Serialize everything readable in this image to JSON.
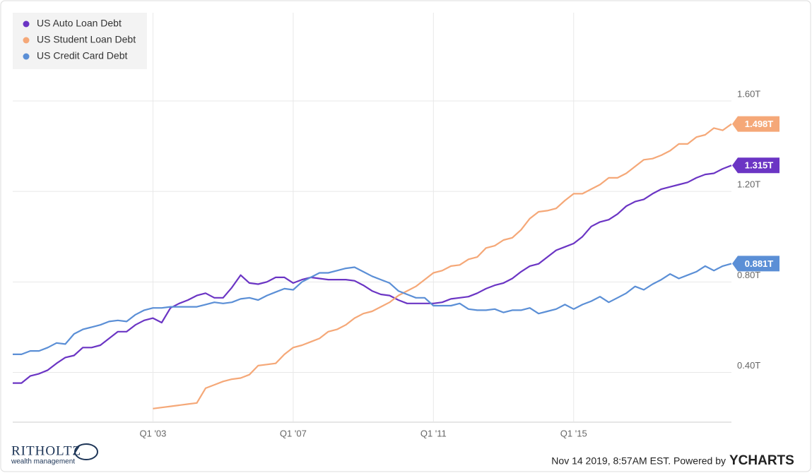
{
  "chart_data": {
    "type": "line",
    "x": [
      1999,
      1999.25,
      1999.5,
      1999.75,
      2000,
      2000.25,
      2000.5,
      2000.75,
      2001,
      2001.25,
      2001.5,
      2001.75,
      2002,
      2002.25,
      2002.5,
      2002.75,
      2003,
      2003.25,
      2003.5,
      2003.75,
      2004,
      2004.25,
      2004.5,
      2004.75,
      2005,
      2005.25,
      2005.5,
      2005.75,
      2006,
      2006.25,
      2006.5,
      2006.75,
      2007,
      2007.25,
      2007.5,
      2007.75,
      2008,
      2008.25,
      2008.5,
      2008.75,
      2009,
      2009.25,
      2009.5,
      2009.75,
      2010,
      2010.25,
      2010.5,
      2010.75,
      2011,
      2011.25,
      2011.5,
      2011.75,
      2012,
      2012.25,
      2012.5,
      2012.75,
      2013,
      2013.25,
      2013.5,
      2013.75,
      2014,
      2014.25,
      2014.5,
      2014.75,
      2015,
      2015.25,
      2015.5,
      2015.75,
      2016,
      2016.25,
      2016.5,
      2016.75,
      2017,
      2017.25,
      2017.5,
      2017.75,
      2018,
      2018.25,
      2018.5,
      2018.75,
      2019,
      2019.25,
      2019.5
    ],
    "series": [
      {
        "name": "US Auto Loan Debt",
        "color": "#6b35c4",
        "end_label": "1.315T",
        "values": [
          0.353,
          0.353,
          0.384,
          0.394,
          0.41,
          0.44,
          0.466,
          0.475,
          0.51,
          0.51,
          0.52,
          0.55,
          0.58,
          0.58,
          0.61,
          0.63,
          0.64,
          0.62,
          0.685,
          0.705,
          0.72,
          0.74,
          0.75,
          0.73,
          0.73,
          0.775,
          0.83,
          0.795,
          0.79,
          0.8,
          0.82,
          0.82,
          0.795,
          0.81,
          0.82,
          0.815,
          0.81,
          0.81,
          0.81,
          0.805,
          0.785,
          0.76,
          0.745,
          0.74,
          0.72,
          0.705,
          0.705,
          0.705,
          0.705,
          0.71,
          0.725,
          0.73,
          0.735,
          0.75,
          0.77,
          0.785,
          0.795,
          0.815,
          0.845,
          0.87,
          0.88,
          0.91,
          0.94,
          0.955,
          0.97,
          1.0,
          1.045,
          1.065,
          1.075,
          1.1,
          1.135,
          1.155,
          1.165,
          1.19,
          1.21,
          1.22,
          1.23,
          1.24,
          1.26,
          1.275,
          1.28,
          1.3,
          1.315
        ]
      },
      {
        "name": "US Student Loan Debt",
        "color": "#f5a878",
        "end_label": "1.498T",
        "values": [
          null,
          null,
          null,
          null,
          null,
          null,
          null,
          null,
          null,
          null,
          null,
          null,
          null,
          null,
          null,
          null,
          0.24,
          0.245,
          0.25,
          0.255,
          0.26,
          0.265,
          0.33,
          0.345,
          0.36,
          0.37,
          0.375,
          0.39,
          0.43,
          0.435,
          0.44,
          0.48,
          0.51,
          0.52,
          0.535,
          0.55,
          0.58,
          0.59,
          0.61,
          0.64,
          0.66,
          0.67,
          0.69,
          0.71,
          0.74,
          0.76,
          0.78,
          0.81,
          0.84,
          0.85,
          0.87,
          0.875,
          0.9,
          0.91,
          0.95,
          0.96,
          0.985,
          0.995,
          1.03,
          1.08,
          1.11,
          1.115,
          1.125,
          1.16,
          1.19,
          1.19,
          1.21,
          1.23,
          1.26,
          1.26,
          1.28,
          1.31,
          1.34,
          1.345,
          1.36,
          1.38,
          1.41,
          1.41,
          1.44,
          1.45,
          1.48,
          1.47,
          1.498
        ]
      },
      {
        "name": "US Credit Card Debt",
        "color": "#5b8fd6",
        "end_label": "0.881T",
        "values": [
          0.48,
          0.48,
          0.495,
          0.495,
          0.51,
          0.53,
          0.525,
          0.57,
          0.59,
          0.6,
          0.61,
          0.625,
          0.63,
          0.625,
          0.655,
          0.675,
          0.685,
          0.685,
          0.69,
          0.69,
          0.69,
          0.69,
          0.7,
          0.71,
          0.705,
          0.71,
          0.725,
          0.73,
          0.72,
          0.74,
          0.755,
          0.77,
          0.765,
          0.8,
          0.82,
          0.84,
          0.84,
          0.85,
          0.86,
          0.865,
          0.845,
          0.825,
          0.81,
          0.795,
          0.76,
          0.745,
          0.73,
          0.73,
          0.695,
          0.695,
          0.695,
          0.705,
          0.68,
          0.675,
          0.675,
          0.68,
          0.665,
          0.675,
          0.675,
          0.685,
          0.66,
          0.67,
          0.68,
          0.7,
          0.68,
          0.7,
          0.715,
          0.735,
          0.71,
          0.73,
          0.75,
          0.78,
          0.765,
          0.79,
          0.81,
          0.835,
          0.815,
          0.83,
          0.845,
          0.87,
          0.85,
          0.87,
          0.881
        ]
      }
    ],
    "xlim": [
      1999,
      2019.5
    ],
    "xticks": [
      {
        "value": 2003,
        "label": "Q1 '03"
      },
      {
        "value": 2007,
        "label": "Q1 '07"
      },
      {
        "value": 2011,
        "label": "Q1 '11"
      },
      {
        "value": 2015,
        "label": "Q1 '15"
      }
    ],
    "ylim": [
      0.18,
      1.99
    ],
    "yticks": [
      {
        "value": 0.4,
        "label": "0.40T"
      },
      {
        "value": 0.8,
        "label": "0.80T"
      },
      {
        "value": 1.2,
        "label": "1.20T"
      },
      {
        "value": 1.6,
        "label": "1.60T"
      }
    ],
    "grid": true,
    "legend": "top-left"
  },
  "footer": {
    "logo": "RITHOLTZ",
    "logo_sub": "wealth management",
    "timestamp": "Nov 14 2019, 8:57AM EST. Powered by",
    "brand": "YCHARTS"
  }
}
